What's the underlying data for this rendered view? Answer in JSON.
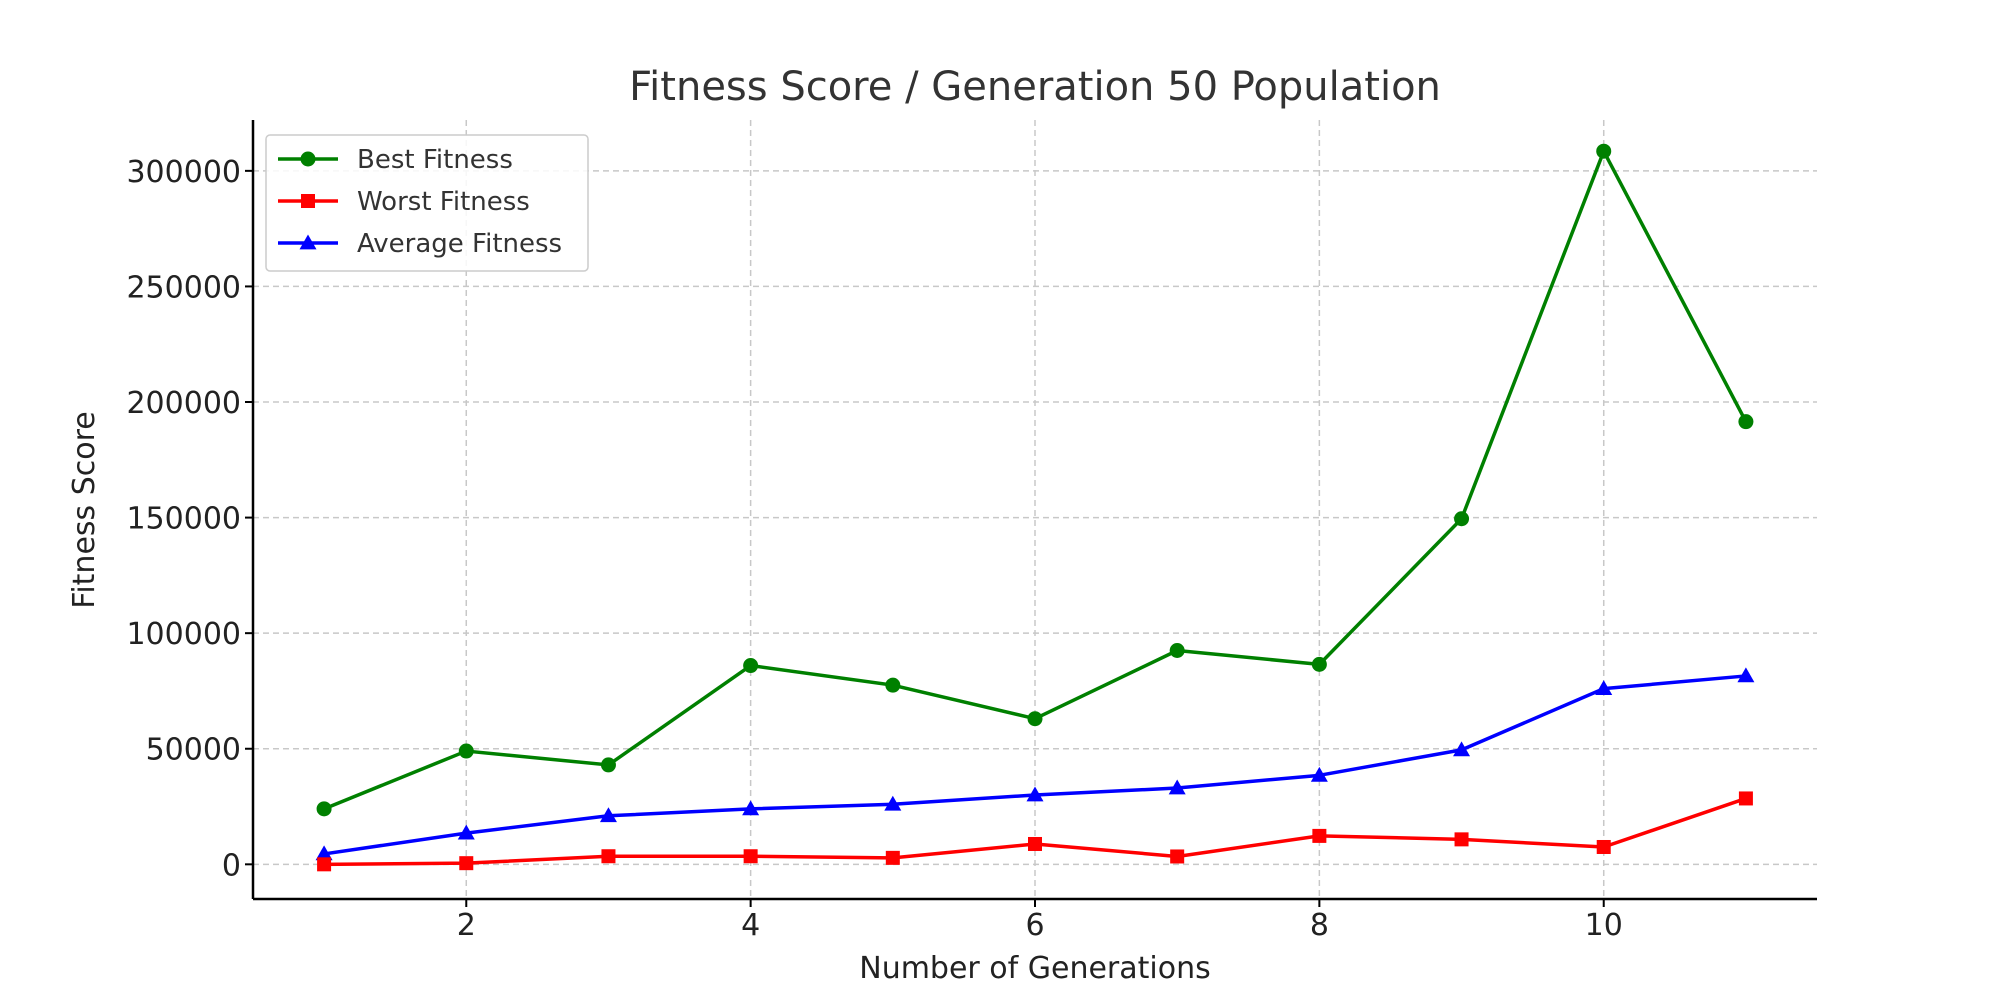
{
  "chart_data": {
    "type": "line",
    "title": "Fitness Score / Generation 50 Population",
    "xlabel": "Number of Generations",
    "ylabel": "Fitness Score",
    "x": [
      1,
      2,
      3,
      4,
      5,
      6,
      7,
      8,
      9,
      10,
      11
    ],
    "xlim": [
      0.5,
      11.5
    ],
    "ylim": [
      -15000,
      322000
    ],
    "x_ticks": [
      2,
      4,
      6,
      8,
      10
    ],
    "y_ticks": [
      0,
      50000,
      100000,
      150000,
      200000,
      250000,
      300000
    ],
    "grid": true,
    "legend_position": "top-left",
    "series": [
      {
        "name": "Best Fitness",
        "color": "#008000",
        "marker": "circle",
        "values": [
          24000,
          49000,
          43000,
          86000,
          77500,
          63000,
          92500,
          86500,
          149500,
          308500,
          191500
        ]
      },
      {
        "name": "Worst Fitness",
        "color": "#ff0000",
        "marker": "square",
        "values": [
          0,
          500,
          3500,
          3500,
          2800,
          8800,
          3400,
          12300,
          10800,
          7500,
          28500
        ]
      },
      {
        "name": "Average Fitness",
        "color": "#0000ff",
        "marker": "triangle",
        "values": [
          4500,
          13500,
          21000,
          24000,
          26000,
          30000,
          33000,
          38500,
          49500,
          76000,
          81500
        ]
      }
    ]
  }
}
